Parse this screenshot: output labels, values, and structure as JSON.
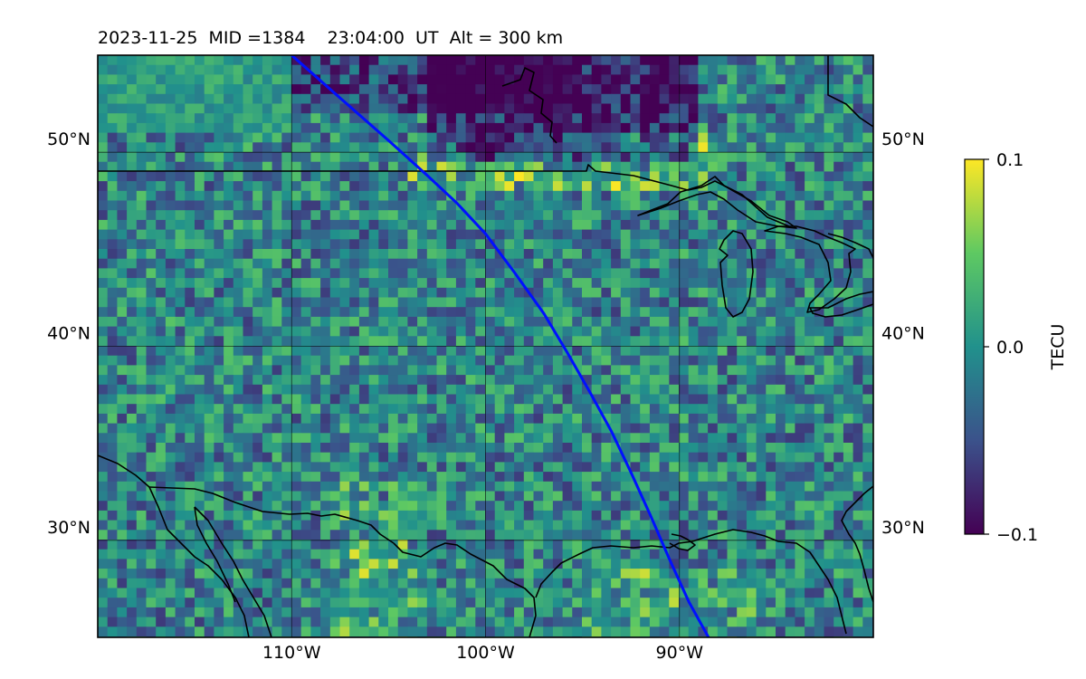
{
  "title": "2023-11-25  MID =1384    23:04:00  UT  Alt = 300 km",
  "map": {
    "lon_range": [
      -120,
      -80
    ],
    "lat_range": [
      25,
      55
    ],
    "lon_ticks": [
      {
        "value": -110,
        "label": "110°W"
      },
      {
        "value": -100,
        "label": "100°W"
      },
      {
        "value": -90,
        "label": "90°W"
      }
    ],
    "lat_ticks": [
      {
        "value": 30,
        "label": "30°N"
      },
      {
        "value": 40,
        "label": "40°N"
      },
      {
        "value": 50,
        "label": "50°N"
      }
    ],
    "gridlines": true,
    "colormap": [
      "#440154",
      "#3b528b",
      "#21918c",
      "#5ec962",
      "#fde725"
    ],
    "track_color": "#0010ff",
    "track": [
      {
        "lon": -110.0,
        "lat": 55.0
      },
      {
        "lon": -107.5,
        "lat": 52.8
      },
      {
        "lon": -105.0,
        "lat": 50.6
      },
      {
        "lon": -103.0,
        "lat": 48.8
      },
      {
        "lon": -101.5,
        "lat": 47.4
      },
      {
        "lon": -100.0,
        "lat": 45.8
      },
      {
        "lon": -98.5,
        "lat": 43.8
      },
      {
        "lon": -97.0,
        "lat": 41.7
      },
      {
        "lon": -95.8,
        "lat": 39.7
      },
      {
        "lon": -94.6,
        "lat": 37.6
      },
      {
        "lon": -93.5,
        "lat": 35.6
      },
      {
        "lon": -92.5,
        "lat": 33.5
      },
      {
        "lon": -91.5,
        "lat": 31.3
      },
      {
        "lon": -90.5,
        "lat": 29.0
      },
      {
        "lon": -89.5,
        "lat": 26.8
      },
      {
        "lon": -88.5,
        "lat": 25.0
      }
    ]
  },
  "colorbar": {
    "label": "TECU",
    "min": -0.1,
    "max": 0.1,
    "ticks": [
      {
        "value": 0.1,
        "label": "0.1"
      },
      {
        "value": 0.0,
        "label": "0.0"
      },
      {
        "value": -0.1,
        "label": "−0.1"
      }
    ]
  }
}
